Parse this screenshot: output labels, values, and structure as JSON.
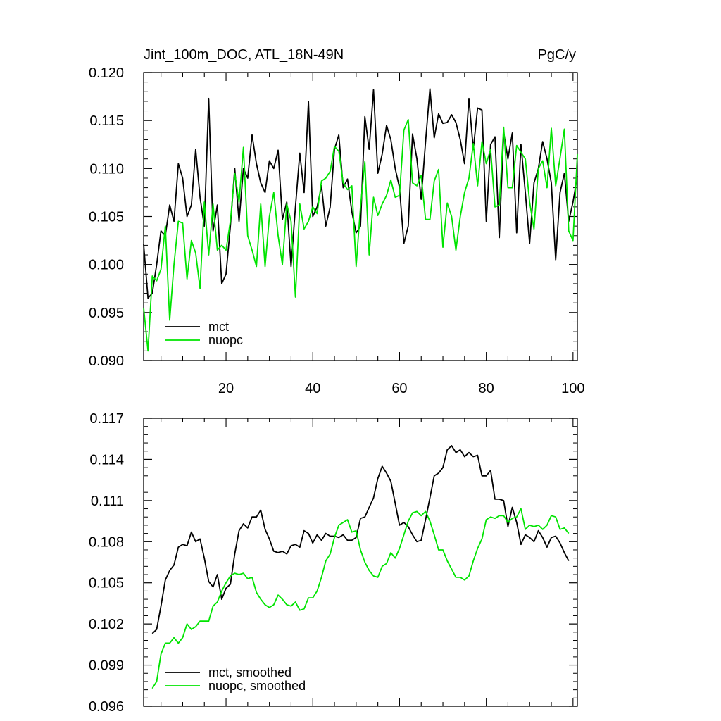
{
  "chart_data": [
    {
      "type": "line",
      "title": "Jint_100m_DOC, ATL_18N-49N",
      "units": "PgC/y",
      "xlim": [
        1,
        101
      ],
      "ylim": [
        0.09,
        0.12
      ],
      "yticks": [
        "0.090",
        "0.095",
        "0.100",
        "0.105",
        "0.110",
        "0.115",
        "0.120"
      ],
      "xticks": [
        "20",
        "40",
        "60",
        "80",
        "100"
      ],
      "x_start": 1,
      "legend_position": "bottom-left",
      "series": [
        {
          "name": "mct",
          "color": "#000000",
          "values": [
            0.1021,
            0.0965,
            0.097,
            0.1,
            0.1035,
            0.103,
            0.1062,
            0.1045,
            0.1105,
            0.109,
            0.105,
            0.1062,
            0.112,
            0.107,
            0.104,
            0.1173,
            0.1035,
            0.1062,
            0.098,
            0.099,
            0.104,
            0.11,
            0.1045,
            0.11,
            0.109,
            0.1135,
            0.1105,
            0.1085,
            0.1075,
            0.1108,
            0.11,
            0.1119,
            0.1047,
            0.1065,
            0.0998,
            0.106,
            0.1116,
            0.1075,
            0.117,
            0.105,
            0.106,
            0.1082,
            0.104,
            0.106,
            0.112,
            0.1135,
            0.108,
            0.1089,
            0.1055,
            0.1033,
            0.104,
            0.1154,
            0.112,
            0.1182,
            0.1095,
            0.1115,
            0.1145,
            0.113,
            0.11,
            0.108,
            0.1022,
            0.104,
            0.1136,
            0.111,
            0.1068,
            0.1128,
            0.1183,
            0.1132,
            0.1157,
            0.1147,
            0.1148,
            0.1156,
            0.1148,
            0.113,
            0.1105,
            0.1173,
            0.112,
            0.1163,
            0.1161,
            0.1045,
            0.1125,
            0.1133,
            0.1028,
            0.1138,
            0.111,
            0.1137,
            0.1033,
            0.1125,
            0.1075,
            0.1022,
            0.1085,
            0.11,
            0.1128,
            0.111,
            0.1085,
            0.1005,
            0.1075,
            0.1095,
            0.1045,
            0.1065,
            0.1092
          ]
        },
        {
          "name": "nuopc",
          "color": "#00e400",
          "values": [
            0.0955,
            0.091,
            0.0988,
            0.0983,
            0.0995,
            0.104,
            0.0942,
            0.1,
            0.1045,
            0.1043,
            0.0985,
            0.1025,
            0.1012,
            0.0975,
            0.1065,
            0.101,
            0.1063,
            0.1015,
            0.102,
            0.1015,
            0.1045,
            0.1095,
            0.1065,
            0.1122,
            0.103,
            0.1015,
            0.0998,
            0.1063,
            0.0998,
            0.105,
            0.1075,
            0.103,
            0.1,
            0.1063,
            0.1045,
            0.0966,
            0.1063,
            0.1037,
            0.1045,
            0.106,
            0.1053,
            0.1087,
            0.109,
            0.1097,
            0.1123,
            0.1118,
            0.1085,
            0.1078,
            0.1082,
            0.0998,
            0.106,
            0.1107,
            0.101,
            0.107,
            0.1051,
            0.1063,
            0.1072,
            0.1088,
            0.107,
            0.1072,
            0.114,
            0.1151,
            0.1085,
            0.1082,
            0.1093,
            0.1047,
            0.1047,
            0.1087,
            0.1099,
            0.1018,
            0.1064,
            0.105,
            0.1015,
            0.105,
            0.1075,
            0.109,
            0.1126,
            0.1082,
            0.1128,
            0.1105,
            0.112,
            0.106,
            0.1062,
            0.1143,
            0.108,
            0.108,
            0.1124,
            0.1117,
            0.111,
            0.1065,
            0.1037,
            0.11,
            0.1108,
            0.108,
            0.1142,
            0.1082,
            0.1111,
            0.1141,
            0.1035,
            0.1025,
            0.1115
          ]
        }
      ]
    },
    {
      "type": "line",
      "xlim": [
        1,
        101
      ],
      "ylim": [
        0.096,
        0.117
      ],
      "yticks": [
        "0.096",
        "0.099",
        "0.102",
        "0.105",
        "0.108",
        "0.111",
        "0.114",
        "0.117"
      ],
      "legend_position": "bottom-left",
      "series": [
        {
          "name": "mct, smoothed",
          "color": "#000000",
          "x_start": 3,
          "values": [
            0.1013,
            0.1016,
            0.1033,
            0.1052,
            0.1059,
            0.1063,
            0.1076,
            0.1078,
            0.1077,
            0.1087,
            0.108,
            0.1082,
            0.1068,
            0.1051,
            0.1047,
            0.1056,
            0.1038,
            0.1046,
            0.1049,
            0.1071,
            0.1088,
            0.1093,
            0.109,
            0.1098,
            0.1098,
            0.1103,
            0.1089,
            0.1082,
            0.1073,
            0.1072,
            0.1073,
            0.1071,
            0.1077,
            0.1078,
            0.1076,
            0.1088,
            0.1086,
            0.1079,
            0.1085,
            0.1081,
            0.1086,
            0.1084,
            0.1084,
            0.1083,
            0.1085,
            0.1081,
            0.1081,
            0.1083,
            0.1097,
            0.1098,
            0.1105,
            0.1112,
            0.1126,
            0.1135,
            0.113,
            0.1124,
            0.1108,
            0.1092,
            0.1094,
            0.1091,
            0.1085,
            0.108,
            0.1081,
            0.1096,
            0.1112,
            0.1128,
            0.113,
            0.1134,
            0.1147,
            0.115,
            0.1145,
            0.1147,
            0.1142,
            0.1145,
            0.1142,
            0.1143,
            0.1128,
            0.1128,
            0.1132,
            0.1111,
            0.1111,
            0.111,
            0.1091,
            0.1105,
            0.1094,
            0.1078,
            0.1085,
            0.1083,
            0.108,
            0.1088,
            0.1083,
            0.1076,
            0.1083,
            0.1084,
            0.1079,
            0.1072,
            0.1066
          ]
        },
        {
          "name": "nuopc, smoothed",
          "color": "#00e400",
          "x_start": 3,
          "values": [
            0.0973,
            0.0978,
            0.0998,
            0.1006,
            0.1006,
            0.101,
            0.1006,
            0.101,
            0.102,
            0.1016,
            0.1018,
            0.1022,
            0.1022,
            0.1022,
            0.1033,
            0.1036,
            0.1044,
            0.105,
            0.1055,
            0.1057,
            0.1056,
            0.1057,
            0.1053,
            0.1054,
            0.1043,
            0.1038,
            0.1034,
            0.1032,
            0.1034,
            0.1041,
            0.1038,
            0.1034,
            0.1033,
            0.1036,
            0.103,
            0.1031,
            0.1039,
            0.1039,
            0.1044,
            0.1054,
            0.1066,
            0.1071,
            0.1083,
            0.1092,
            0.1094,
            0.1096,
            0.1087,
            0.1088,
            0.1074,
            0.1065,
            0.1059,
            0.1055,
            0.1054,
            0.1062,
            0.1064,
            0.1072,
            0.1068,
            0.1075,
            0.1085,
            0.1095,
            0.1101,
            0.1102,
            0.1099,
            0.1102,
            0.1095,
            0.1085,
            0.1074,
            0.1074,
            0.1066,
            0.106,
            0.1054,
            0.1054,
            0.1052,
            0.1055,
            0.1066,
            0.1075,
            0.1082,
            0.1096,
            0.1098,
            0.1097,
            0.1099,
            0.1099,
            0.1094,
            0.1097,
            0.1098,
            0.1104,
            0.1089,
            0.1092,
            0.1091,
            0.1092,
            0.1089,
            0.1092,
            0.1099,
            0.1098,
            0.1089,
            0.109,
            0.1086
          ]
        }
      ]
    }
  ]
}
